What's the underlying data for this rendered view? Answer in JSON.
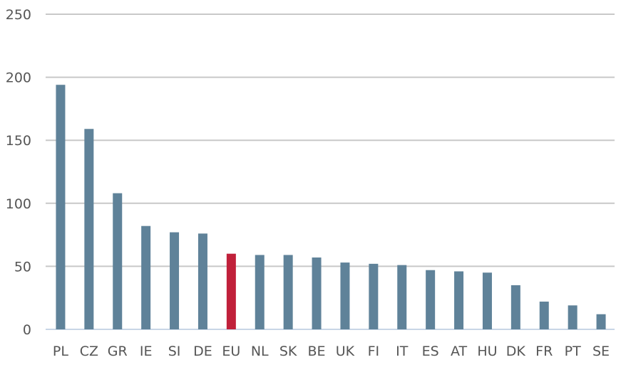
{
  "chart_data": {
    "type": "bar",
    "categories": [
      "PL",
      "CZ",
      "GR",
      "IE",
      "SI",
      "DE",
      "EU",
      "NL",
      "SK",
      "BE",
      "UK",
      "FI",
      "IT",
      "ES",
      "AT",
      "HU",
      "DK",
      "FR",
      "PT",
      "SE"
    ],
    "values": [
      194,
      159,
      108,
      82,
      77,
      76,
      60,
      59,
      59,
      57,
      53,
      52,
      51,
      47,
      46,
      45,
      35,
      22,
      19,
      12
    ],
    "highlight": "EU",
    "ylim": [
      0,
      250
    ],
    "yticks": [
      0,
      50,
      100,
      150,
      200,
      250
    ],
    "grid": true,
    "title": "",
    "xlabel": "",
    "ylabel": "",
    "colors": {
      "bar": "#5f8299",
      "highlight": "#c0203a",
      "grid": "#c8c8c8",
      "baseline": "#c8d6e6"
    }
  }
}
